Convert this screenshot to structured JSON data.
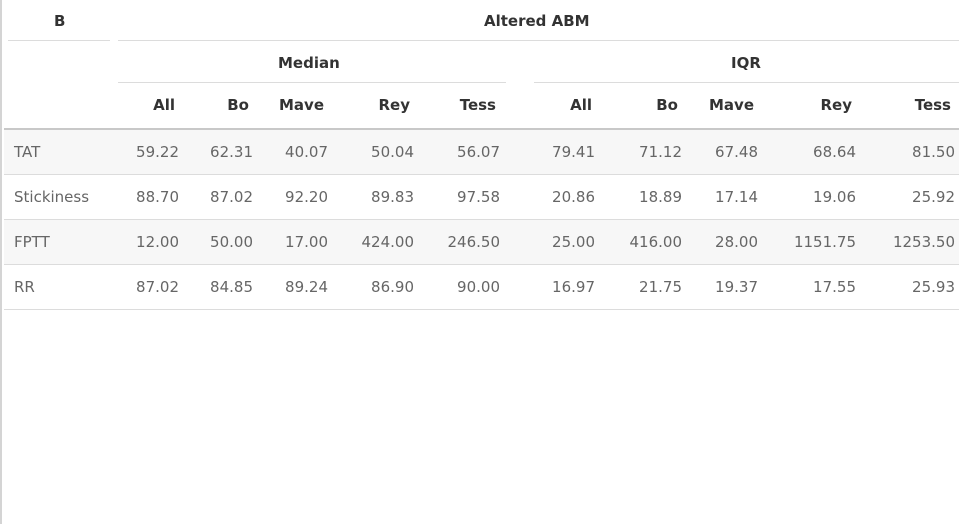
{
  "table": {
    "corner_label": "B",
    "group_title": "Altered ABM",
    "subgroups": [
      "Median",
      "IQR"
    ],
    "columns": [
      "All",
      "Bo",
      "Mave",
      "Rey",
      "Tess",
      "All",
      "Bo",
      "Mave",
      "Rey",
      "Tess"
    ],
    "rows": [
      {
        "label": "TAT",
        "values": [
          "59.22",
          "62.31",
          "40.07",
          "50.04",
          "56.07",
          "79.41",
          "71.12",
          "67.48",
          "68.64",
          "81.50"
        ]
      },
      {
        "label": "Stickiness",
        "values": [
          "88.70",
          "87.02",
          "92.20",
          "89.83",
          "97.58",
          "20.86",
          "18.89",
          "17.14",
          "19.06",
          "25.92"
        ]
      },
      {
        "label": "FPTT",
        "values": [
          "12.00",
          "50.00",
          "17.00",
          "424.00",
          "246.50",
          "25.00",
          "416.00",
          "28.00",
          "1151.75",
          "1253.50"
        ]
      },
      {
        "label": "RR",
        "values": [
          "87.02",
          "84.85",
          "89.24",
          "86.90",
          "90.00",
          "16.97",
          "21.75",
          "19.37",
          "17.55",
          "25.93"
        ]
      }
    ]
  }
}
